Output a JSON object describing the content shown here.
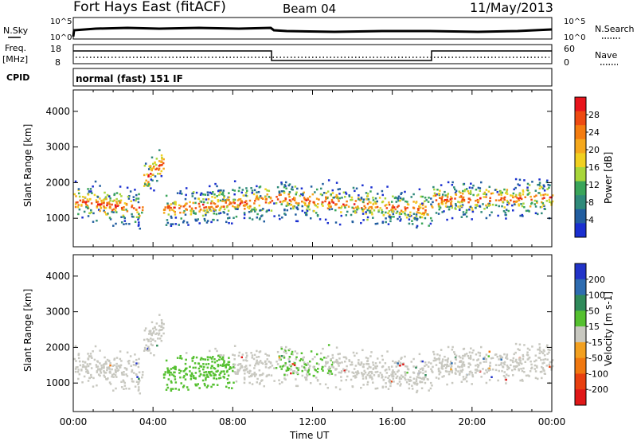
{
  "header": {
    "station": "Fort Hays East (fitACF)",
    "beam": "Beam 04",
    "date": "11/May/2013"
  },
  "strip_labels": {
    "nsky": "N.Sky",
    "nsearch": "N.Search",
    "freq_line1": "Freq.",
    "freq_line2": "[MHz]",
    "nave": "Nave",
    "cpid": "CPID",
    "nsky_ticks": [
      "10^5",
      "10^0"
    ],
    "nsearch_ticks": [
      "10^5",
      "10^0"
    ],
    "freq_ticks": [
      "18",
      "8"
    ],
    "nave_ticks": [
      "60",
      "0"
    ],
    "cpid_text": "normal (fast) 151 IF"
  },
  "chart_data": [
    {
      "type": "heatmap",
      "name": "power",
      "ylabel": "Slant Range [km]",
      "xlabel": "",
      "y_ticks": [
        1000,
        2000,
        3000,
        4000
      ],
      "ylim": [
        200,
        4600
      ],
      "xlim_hours": [
        0,
        24
      ],
      "colorbar": {
        "title": "Power [dB]",
        "ticks": [
          "28",
          "24",
          "20",
          "16",
          "12",
          "8",
          "4"
        ],
        "colors": [
          "#e8141c",
          "#ee4a12",
          "#f47c10",
          "#f5a81c",
          "#f0d020",
          "#a8d63a",
          "#3aa55a",
          "#2f8a7a",
          "#225ea0",
          "#1a2fd0"
        ]
      }
    },
    {
      "type": "heatmap",
      "name": "velocity",
      "ylabel": "Slant Range [km]",
      "xlabel": "Time UT",
      "y_ticks": [
        1000,
        2000,
        3000,
        4000
      ],
      "ylim": [
        200,
        4600
      ],
      "x_tick_labels": [
        "00:00",
        "04:00",
        "08:00",
        "12:00",
        "16:00",
        "20:00",
        "00:00"
      ],
      "colorbar": {
        "title": "Velocity [m s-1]",
        "ticks": [
          "200",
          "100",
          "50",
          "15",
          "-15",
          "-50",
          "-100",
          "-200"
        ],
        "colors": [
          "#2233c8",
          "#2e6cb0",
          "#2f8a5a",
          "#55c030",
          "#c8c8c0",
          "#f2a020",
          "#f07810",
          "#e84010",
          "#e01818"
        ]
      }
    }
  ]
}
